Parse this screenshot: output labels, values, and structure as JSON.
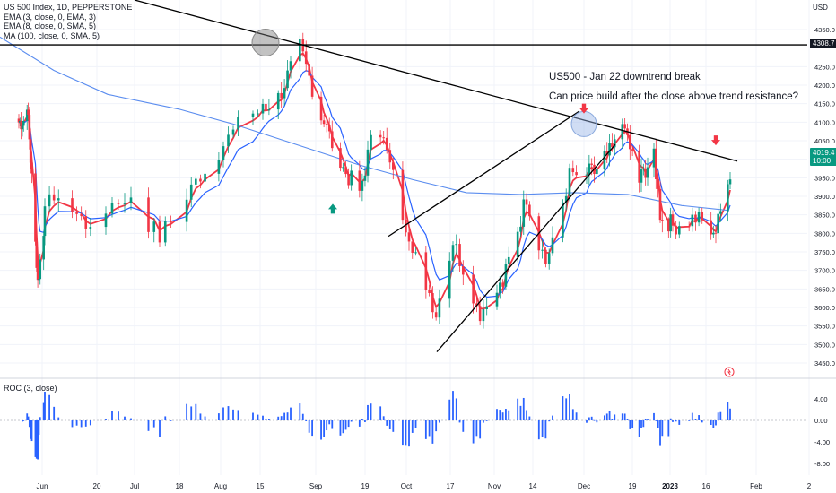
{
  "legend": {
    "symbol": "US 500 Index, 1D, PEPPERSTONE",
    "ema3": "EMA (3, close, 0, EMA, 3)",
    "ema8": "EMA (8, close, 0, SMA, 5)",
    "ma100": "MA (100, close, 0, SMA, 5)"
  },
  "roc_label": "ROC (3, close)",
  "annotations": {
    "title": "US500 - Jan 22 downtrend break",
    "question": "Can price build after the close above trend resistance?"
  },
  "currency": "USD",
  "price_labels": {
    "resistance": "4308.7",
    "last_price": "4019.4",
    "countdown": "10:00"
  },
  "colors": {
    "up": "#089981",
    "down": "#f23645",
    "ema_fast": "#f23645",
    "ema_slow": "#2962ff",
    "ma100": "#5b8def",
    "roc": "#2962ff",
    "trendline": "#000000"
  },
  "chart_data": [
    {
      "type": "candlestick",
      "title": "US 500 Index, 1D, PEPPERSTONE",
      "ylabel": "USD",
      "ylim": [
        3420,
        4420
      ],
      "yticks": [
        3450,
        3500,
        3550,
        3600,
        3650,
        3700,
        3750,
        3800,
        3850,
        3900,
        3950,
        4000,
        4050,
        4100,
        4150,
        4200,
        4250,
        4350
      ],
      "ytick_labels": [
        "3450.0",
        "3500.0",
        "3550.0",
        "3600.0",
        "3650.0",
        "3700.0",
        "3750.0",
        "3800.0",
        "3850.0",
        "3900.0",
        "3950.0",
        "4000.0",
        "4050.0",
        "4100.0",
        "4150.0",
        "4200.0",
        "4250.0",
        "4350.0"
      ],
      "x_tick_labels": [
        "Jun",
        "20",
        "Jul",
        "18",
        "Aug",
        "15",
        "Sep",
        "19",
        "Oct",
        "17",
        "Nov",
        "14",
        "Dec",
        "19",
        "2023",
        "16",
        "Feb",
        "2"
      ],
      "close_series_key_points": [
        [
          "Jun 1",
          4100
        ],
        [
          "Jun 8",
          4115
        ],
        [
          "Jun 16",
          3665
        ],
        [
          "Jun 24",
          3910
        ],
        [
          "Jul 1",
          3825
        ],
        [
          "Jul 8",
          3900
        ],
        [
          "Jul 14",
          3790
        ],
        [
          "Jul 22",
          3960
        ],
        [
          "Aug 1",
          4120
        ],
        [
          "Aug 8",
          4145
        ],
        [
          "Aug 16",
          4305
        ],
        [
          "Aug 22",
          4140
        ],
        [
          "Aug 30",
          3985
        ],
        [
          "Sep 6",
          3910
        ],
        [
          "Sep 12",
          4110
        ],
        [
          "Sep 20",
          3855
        ],
        [
          "Sep 30",
          3585
        ],
        [
          "Oct 5",
          3780
        ],
        [
          "Oct 13",
          3585
        ],
        [
          "Oct 20",
          3665
        ],
        [
          "Oct 28",
          3900
        ],
        [
          "Nov 3",
          3720
        ],
        [
          "Nov 10",
          3955
        ],
        [
          "Nov 18",
          3965
        ],
        [
          "Nov 25",
          4025
        ],
        [
          "Nov 30",
          4080
        ],
        [
          "Dec 6",
          3940
        ],
        [
          "Dec 13",
          4020
        ],
        [
          "Dec 16",
          3855
        ],
        [
          "Dec 22",
          3820
        ],
        [
          "Dec 29",
          3840
        ],
        [
          "Jan 5",
          3805
        ],
        [
          "Jan 12",
          3985
        ],
        [
          "Jan 18",
          3930
        ],
        [
          "Jan 23",
          4019.4
        ]
      ],
      "horizontal_line": 4308.7,
      "trendlines": [
        {
          "name": "downtrend resistance",
          "from": [
            "Apr",
            4520
          ],
          "to": [
            "Jan 24",
            4000
          ]
        },
        {
          "name": "channel lower",
          "from": [
            "Oct 12",
            3480
          ],
          "to": [
            "Dec 6",
            4045
          ]
        },
        {
          "name": "channel upper",
          "from": [
            "Oct 4",
            3795
          ],
          "to": [
            "Nov 30",
            4135
          ]
        }
      ],
      "markers": [
        {
          "type": "up-arrow",
          "at": "Sep 14",
          "value": 3870
        },
        {
          "type": "down-arrow",
          "at": "Nov 30",
          "value": 4130
        },
        {
          "type": "down-arrow",
          "at": "Jan 20",
          "value": 4045
        }
      ],
      "highlights": [
        {
          "at": "Aug 16",
          "value": 4305
        },
        {
          "at": "Nov 30",
          "value": 4095
        }
      ]
    },
    {
      "type": "bar",
      "title": "ROC (3, close)",
      "ylim": [
        -9,
        7
      ],
      "yticks": [
        4,
        0,
        -4,
        -8
      ],
      "ytick_labels": [
        "4.00",
        "0.00",
        "-4.00",
        "-8.00"
      ],
      "last_value": 2.2
    }
  ]
}
